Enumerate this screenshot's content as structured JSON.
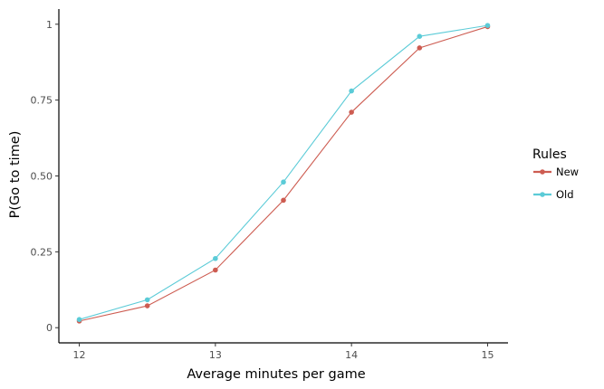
{
  "chart_data": {
    "type": "line",
    "xlabel": "Average minutes per game",
    "ylabel": "P(Go to time)",
    "xlim": [
      11.85,
      15.15
    ],
    "ylim": [
      -0.05,
      1.05
    ],
    "x_ticks": [
      12,
      13,
      14,
      15
    ],
    "x_tick_labels": [
      "12",
      "13",
      "14",
      "15"
    ],
    "y_ticks": [
      0,
      0.25,
      0.5,
      0.75,
      1
    ],
    "y_tick_labels": [
      "0",
      "0.25",
      "0.50",
      "0.75",
      "1"
    ],
    "grid": false,
    "legend": {
      "title": "Rules",
      "placement": "right"
    },
    "x": [
      12,
      12.5,
      13,
      13.5,
      14,
      14.5,
      15
    ],
    "series": [
      {
        "name": "New",
        "color": "#cd5c51",
        "values": [
          0.022,
          0.072,
          0.19,
          0.42,
          0.71,
          0.922,
          0.992
        ]
      },
      {
        "name": "Old",
        "color": "#5bcbd7",
        "values": [
          0.027,
          0.092,
          0.228,
          0.48,
          0.78,
          0.96,
          0.996
        ]
      }
    ]
  }
}
